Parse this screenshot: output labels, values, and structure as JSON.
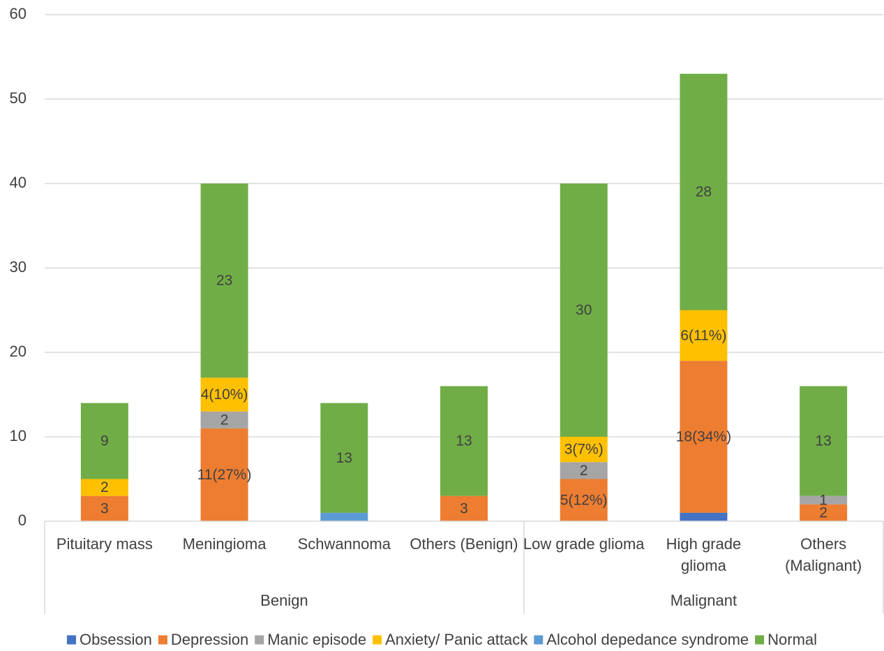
{
  "chart_data": {
    "type": "bar",
    "stacked": true,
    "title": "",
    "xlabel": "",
    "ylabel": "",
    "ylim": [
      0,
      60
    ],
    "yticks": [
      0,
      10,
      20,
      30,
      40,
      50,
      60
    ],
    "grid": true,
    "legend_position": "bottom",
    "categories": [
      "Pituitary mass",
      "Meningioma",
      "Schwannoma",
      "Others (Benign)",
      "Low grade glioma",
      "High grade glioma",
      "Others (Malignant)"
    ],
    "groups": [
      {
        "name": "Benign",
        "categories": [
          0,
          1,
          2,
          3
        ]
      },
      {
        "name": "Malignant",
        "categories": [
          4,
          5,
          6
        ]
      }
    ],
    "series": [
      {
        "name": "Obsession",
        "color": "#4472C4",
        "values": [
          0,
          0,
          0,
          0,
          0,
          1,
          0
        ],
        "labels": [
          "",
          "",
          "",
          "",
          "",
          "",
          ""
        ]
      },
      {
        "name": "Depression",
        "color": "#ED7D31",
        "values": [
          3,
          11,
          0,
          3,
          5,
          18,
          2
        ],
        "labels": [
          "3",
          "11(27%)",
          "",
          "3",
          "5(12%)",
          "18(34%)",
          "2"
        ]
      },
      {
        "name": "Manic episode",
        "color": "#A5A5A5",
        "values": [
          0,
          2,
          0,
          0,
          2,
          0,
          1
        ],
        "labels": [
          "",
          "2",
          "",
          "",
          "2",
          "",
          "1"
        ]
      },
      {
        "name": "Anxiety/ Panic attack",
        "color": "#FFC000",
        "values": [
          2,
          4,
          0,
          0,
          3,
          6,
          0
        ],
        "labels": [
          "2",
          "4(10%)",
          "",
          "",
          "3(7%)",
          "6(11%)",
          ""
        ]
      },
      {
        "name": "Alcohol depedance syndrome",
        "color": "#5B9BD5",
        "values": [
          0,
          0,
          1,
          0,
          0,
          0,
          0
        ],
        "labels": [
          "",
          "",
          "",
          "",
          "",
          "",
          ""
        ]
      },
      {
        "name": "Normal",
        "color": "#70AD47",
        "values": [
          9,
          23,
          13,
          13,
          30,
          28,
          13
        ],
        "labels": [
          "9",
          "23",
          "13",
          "13",
          "30",
          "28",
          "13"
        ]
      }
    ]
  }
}
